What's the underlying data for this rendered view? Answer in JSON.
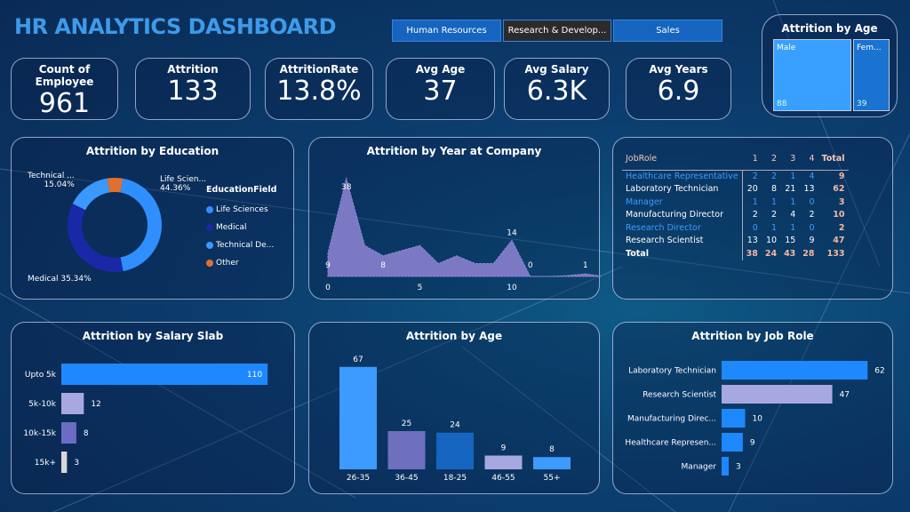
{
  "header": {
    "title": "HR ANALYTICS DASHBOARD"
  },
  "slicer": {
    "options": [
      {
        "label": "Human Resources",
        "selected": false
      },
      {
        "label": "Research & Develop...",
        "selected": true
      },
      {
        "label": "Sales",
        "selected": false
      }
    ]
  },
  "kpis": [
    {
      "label": "Count of Employee",
      "value": "961"
    },
    {
      "label": "Attrition",
      "value": "133"
    },
    {
      "label": "AttritionRate",
      "value": "13.8%"
    },
    {
      "label": "Avg Age",
      "value": "37"
    },
    {
      "label": "Avg Salary",
      "value": "6.3K"
    },
    {
      "label": "Avg Years",
      "value": "6.9"
    }
  ],
  "gender": {
    "title": "Attrition by Age",
    "items": [
      {
        "label": "Male",
        "value": "88",
        "color": "#3aa0ff"
      },
      {
        "label": "Fem...",
        "value": "39",
        "color": "#1a73d0"
      }
    ]
  },
  "colors": {
    "title": "#3d9be9",
    "accent": "#1e88ff",
    "lavender": "#a8a8e0"
  },
  "chart_data": [
    {
      "type": "pie",
      "title": "Attrition by Education",
      "legend_title": "EducationField",
      "legend_position": "right",
      "slices": [
        {
          "name": "Life Sciences",
          "label": "Life Scien...",
          "value": 44.36,
          "pct": "44.36%",
          "color": "#2f8fff"
        },
        {
          "name": "Medical",
          "label": "Medical",
          "value": 35.34,
          "pct": "35.34%",
          "color": "#1a28a8"
        },
        {
          "name": "Technical De...",
          "label": "Technical ...",
          "value": 15.04,
          "pct": "15.04%",
          "color": "#3a98ff"
        },
        {
          "name": "Other",
          "label": "",
          "value": 5.26,
          "pct": "",
          "color": "#e07030"
        }
      ]
    },
    {
      "type": "area",
      "title": "Attrition by Year at Company",
      "xticks": [
        0,
        5,
        10
      ],
      "x": [
        0,
        1,
        2,
        3,
        4,
        5,
        6,
        7,
        8,
        9,
        10,
        11,
        12,
        13,
        14,
        15
      ],
      "y": [
        9,
        38,
        12,
        8,
        10,
        12,
        5,
        8,
        5,
        5,
        14,
        0,
        0,
        0.3,
        1,
        0
      ],
      "labels": [
        {
          "x": 0,
          "text": "9"
        },
        {
          "x": 1,
          "text": "38"
        },
        {
          "x": 3,
          "text": "8"
        },
        {
          "x": 10,
          "text": "14"
        },
        {
          "x": 11,
          "text": "0"
        },
        {
          "x": 14,
          "text": "1"
        },
        {
          "x": 15,
          "text": "0"
        }
      ],
      "color": "#7b78c4"
    },
    {
      "type": "table",
      "columns": [
        "JobRole",
        "1",
        "2",
        "3",
        "4",
        "Total"
      ],
      "rows": [
        [
          "Healthcare Representative",
          "2",
          "2",
          "1",
          "4",
          "9"
        ],
        [
          "Laboratory Technician",
          "20",
          "8",
          "21",
          "13",
          "62"
        ],
        [
          "Manager",
          "1",
          "1",
          "1",
          "0",
          "3"
        ],
        [
          "Manufacturing Director",
          "2",
          "2",
          "4",
          "2",
          "10"
        ],
        [
          "Research Director",
          "0",
          "1",
          "1",
          "0",
          "2"
        ],
        [
          "Research Scientist",
          "13",
          "10",
          "15",
          "9",
          "47"
        ]
      ],
      "total": [
        "Total",
        "38",
        "24",
        "43",
        "28",
        "133"
      ]
    },
    {
      "type": "bar",
      "orientation": "horizontal",
      "title": "Attrition by Salary Slab",
      "categories": [
        "Upto 5k",
        "5k-10k",
        "10k-15k",
        "15k+"
      ],
      "values": [
        110,
        12,
        8,
        3
      ],
      "colors": [
        "#1e88ff",
        "#a8a8e0",
        "#6c6cc4",
        "#d8d8d8"
      ]
    },
    {
      "type": "bar",
      "orientation": "vertical",
      "title": "Attrition by Age",
      "categories": [
        "26-35",
        "36-45",
        "18-25",
        "46-55",
        "55+"
      ],
      "values": [
        67,
        25,
        24,
        9,
        8
      ],
      "colors": [
        "#3d9bff",
        "#6f6fc0",
        "#1565c0",
        "#a8a8e0",
        "#3d9bff"
      ]
    },
    {
      "type": "bar",
      "orientation": "horizontal",
      "title": "Attrition by Job Role",
      "categories": [
        "Laboratory Technician",
        "Research Scientist",
        "Manufacturing Direc...",
        "Healthcare Represen...",
        "Manager"
      ],
      "values": [
        62,
        47,
        10,
        9,
        3
      ],
      "colors": [
        "#1e88ff",
        "#a8a8e0",
        "#1e88ff",
        "#1e88ff",
        "#1e88ff"
      ]
    }
  ]
}
